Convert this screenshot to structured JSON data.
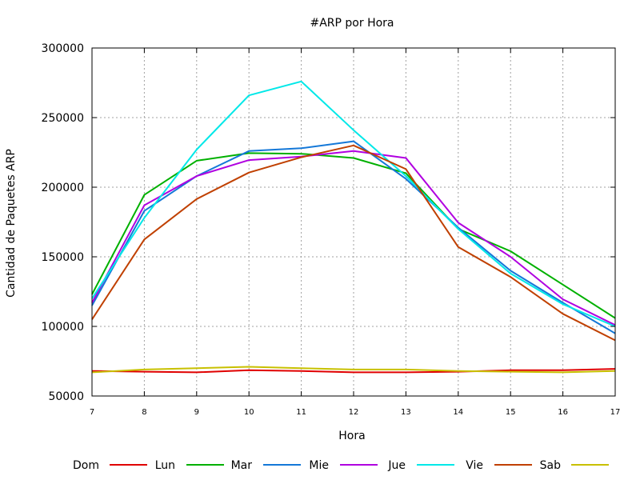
{
  "chart_data": {
    "type": "line",
    "title": "#ARP por Hora",
    "xlabel": "Hora",
    "ylabel": "Cantidad de Paquetes ARP",
    "x": [
      7,
      8,
      9,
      10,
      11,
      12,
      13,
      14,
      15,
      16,
      17
    ],
    "xlim": [
      7,
      17
    ],
    "ylim": [
      50000,
      300000
    ],
    "yticks": [
      50000,
      100000,
      150000,
      200000,
      250000,
      300000
    ],
    "grid": true,
    "legend_position": "bottom",
    "series": [
      {
        "name": "Dom",
        "color": "#e00000",
        "values": [
          68000,
          67500,
          67000,
          68500,
          68000,
          67000,
          67000,
          67500,
          68500,
          68500,
          69500
        ]
      },
      {
        "name": "Lun",
        "color": "#00b000",
        "values": [
          123000,
          194500,
          219000,
          224500,
          224000,
          221000,
          210000,
          170000,
          154000,
          130000,
          106000
        ]
      },
      {
        "name": "Mar",
        "color": "#1478d8",
        "values": [
          115000,
          183000,
          208000,
          226000,
          228000,
          233000,
          206000,
          171000,
          140000,
          117000,
          95000
        ]
      },
      {
        "name": "Mie",
        "color": "#b000e0",
        "values": [
          117000,
          187000,
          208000,
          219500,
          222000,
          226000,
          221000,
          174500,
          150000,
          119500,
          101000
        ]
      },
      {
        "name": "Jue",
        "color": "#00e8e8",
        "values": [
          120000,
          178000,
          227000,
          266000,
          276000,
          241000,
          208000,
          170000,
          138000,
          116000,
          100000
        ]
      },
      {
        "name": "Vie",
        "color": "#c04000",
        "values": [
          105000,
          162500,
          191500,
          210500,
          221500,
          230000,
          213000,
          157000,
          135500,
          109000,
          90000
        ]
      },
      {
        "name": "Sab",
        "color": "#c8c000",
        "values": [
          67000,
          69000,
          70000,
          71000,
          70000,
          69000,
          69000,
          68000,
          67500,
          67000,
          68000
        ]
      }
    ]
  }
}
